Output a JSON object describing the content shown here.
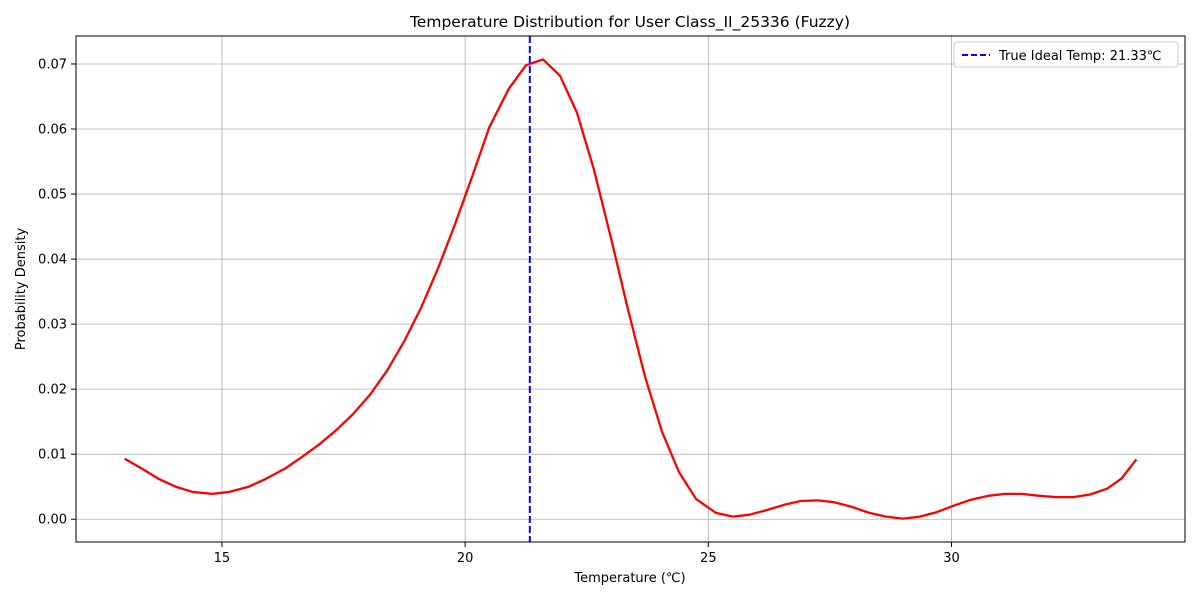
{
  "chart_data": {
    "type": "line",
    "title": "Temperature Distribution for User Class_II_25336 (Fuzzy)",
    "xlabel": "Temperature (℃)",
    "ylabel": "Probability Density",
    "xlim": [
      12.0,
      34.8
    ],
    "ylim": [
      -0.0035,
      0.0743
    ],
    "xticks": [
      15,
      20,
      25,
      30
    ],
    "yticks": [
      0.0,
      0.01,
      0.02,
      0.03,
      0.04,
      0.05,
      0.06,
      0.07
    ],
    "xtick_labels": [
      "15",
      "20",
      "25",
      "30"
    ],
    "ytick_labels": [
      "0.00",
      "0.01",
      "0.02",
      "0.03",
      "0.04",
      "0.05",
      "0.06",
      "0.07"
    ],
    "grid": true,
    "legend_position": "top-right",
    "series": [
      {
        "color": "#ff0000",
        "x": [
          13.0,
          13.35,
          13.7,
          14.05,
          14.4,
          14.8,
          15.15,
          15.55,
          15.9,
          16.3,
          16.65,
          17.0,
          17.35,
          17.7,
          18.05,
          18.4,
          18.75,
          19.1,
          19.45,
          19.8,
          20.15,
          20.5,
          20.9,
          21.25,
          21.6,
          21.95,
          22.3,
          22.65,
          23.0,
          23.35,
          23.7,
          24.05,
          24.4,
          24.75,
          25.15,
          25.5,
          25.85,
          26.2,
          26.55,
          26.9,
          27.25,
          27.6,
          27.95,
          28.3,
          28.65,
          29.0,
          29.35,
          29.7,
          30.05,
          30.4,
          30.75,
          31.1,
          31.45,
          31.8,
          32.15,
          32.5,
          32.85,
          33.2,
          33.5,
          33.8
        ],
        "y": [
          0.0093,
          0.0078,
          0.0062,
          0.005,
          0.0042,
          0.0039,
          0.0042,
          0.005,
          0.0062,
          0.0078,
          0.0096,
          0.0115,
          0.0137,
          0.0162,
          0.0192,
          0.0229,
          0.0274,
          0.0326,
          0.0387,
          0.0455,
          0.0528,
          0.0603,
          0.0662,
          0.0698,
          0.0707,
          0.0682,
          0.0625,
          0.0537,
          0.0432,
          0.0322,
          0.0219,
          0.0134,
          0.0072,
          0.0031,
          0.001,
          0.0004,
          0.0007,
          0.0014,
          0.0022,
          0.0028,
          0.0029,
          0.0026,
          0.0019,
          0.001,
          0.0004,
          0.0001,
          0.0004,
          0.0011,
          0.0021,
          0.003,
          0.0036,
          0.0039,
          0.0039,
          0.0036,
          0.0034,
          0.0034,
          0.0038,
          0.0047,
          0.0063,
          0.0092
        ]
      }
    ],
    "vlines": [
      {
        "x": 21.33,
        "color": "#0000ff",
        "style": "dashed",
        "label": "True Ideal Temp: 21.33℃"
      }
    ]
  }
}
